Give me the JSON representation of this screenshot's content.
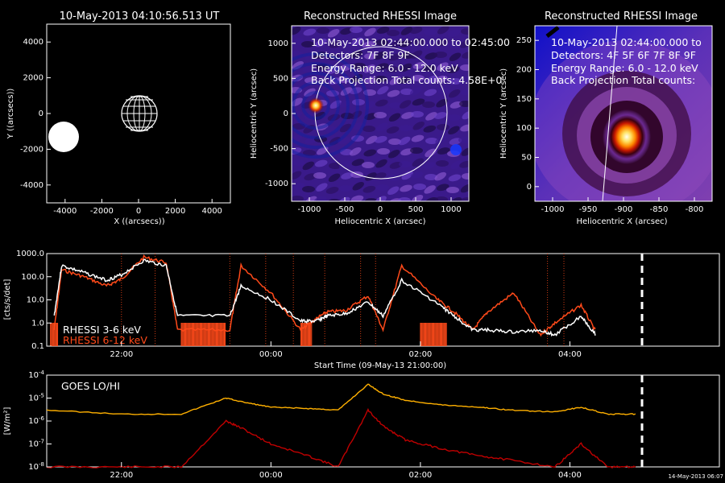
{
  "panel_sun": {
    "title": "10-May-2013 04:10:56.513 UT",
    "xlabel": "X ((arcsecs))",
    "ylabel": "Y ((arcsecs))",
    "xticks": [
      "-4000",
      "-2000",
      "0",
      "2000",
      "4000"
    ],
    "yticks": [
      "4000",
      "2000",
      "0",
      "-2000",
      "-4000"
    ]
  },
  "panel_img1": {
    "title": "Reconstructed RHESSI Image",
    "line1": "10-May-2013 02:44:00.000 to 02:45:00",
    "line2": "Detectors: 7F 8F 9F",
    "line3": "Energy Range: 6.0 - 12.0 keV",
    "line4": "Back Projection     Total counts: 4.58E+0",
    "xlabel": "Heliocentric X (arcsec)",
    "ylabel": "Heliocentric Y (arcsec)",
    "xticks": [
      "-1000",
      "-500",
      "0",
      "500",
      "1000"
    ],
    "yticks": [
      "1000",
      "500",
      "0",
      "-500",
      "-1000"
    ]
  },
  "panel_img2": {
    "title": "Reconstructed RHESSI Image",
    "line1": "10-May-2013 02:44:00.000 to",
    "line2": "Detectors: 4F 5F 6F 7F 8F 9F",
    "line3": "Energy Range: 6.0 - 12.0 keV",
    "line4": "Back Projection     Total counts:",
    "xlabel": "Heliocentric X (arcsec)",
    "ylabel": "Heliocentric Y (arcsec)",
    "xticks": [
      "-1000",
      "-950",
      "-900",
      "-850",
      "-800"
    ],
    "yticks": [
      "250",
      "200",
      "150",
      "100",
      "50",
      "0"
    ]
  },
  "panel_rhessi": {
    "ylabel": "[cts/s/det]",
    "yticks": [
      "1000.0",
      "100.0",
      "10.0",
      "1.0",
      "0.1"
    ],
    "xticks": [
      "22:00",
      "00:00",
      "02:00",
      "04:00"
    ],
    "xlabel": "Start Time (09-May-13 21:00:00)",
    "legend1": "RHESSI  3-6 keV",
    "legend2": "RHESSI  6-12 keV"
  },
  "panel_goes": {
    "label": "GOES LO/HI",
    "ylabel": "[W/m²]",
    "xticks": [
      "22:00",
      "00:00",
      "02:00",
      "04:00"
    ],
    "stamp": "14-May-2013 06:07"
  },
  "colors": {
    "rhessi_low": "#ffffff",
    "rhessi_high": "#ff4a1a",
    "goes_lo": "#ffb000",
    "goes_hi": "#c00000"
  },
  "chart_data": [
    {
      "type": "scatter",
      "title": "10-May-2013 04:10:56.513 UT",
      "xlabel": "X ((arcsecs))",
      "ylabel": "Y ((arcsecs))",
      "xlim": [
        -5000,
        5000
      ],
      "ylim": [
        -5000,
        5000
      ],
      "objects": [
        {
          "name": "solar disk (grid)",
          "x": 0,
          "y": 0,
          "r": 960
        },
        {
          "name": "filled disk",
          "x": -4500,
          "y": -1400,
          "r": 900
        }
      ]
    },
    {
      "type": "heatmap",
      "title": "Reconstructed RHESSI Image",
      "xlabel": "Heliocentric X (arcsec)",
      "ylabel": "Heliocentric Y (arcsec)",
      "xlim": [
        -1250,
        1250
      ],
      "ylim": [
        -1250,
        1250
      ],
      "source": {
        "x": -920,
        "y": 140
      }
    },
    {
      "type": "heatmap",
      "title": "Reconstructed RHESSI Image",
      "xlabel": "Heliocentric X (arcsec)",
      "ylabel": "Heliocentric Y (arcsec)",
      "xlim": [
        -1040,
        -795
      ],
      "ylim": [
        -5,
        255
      ],
      "source": {
        "x": -910,
        "y": 110
      }
    },
    {
      "type": "line",
      "ylabel": "[cts/s/det]",
      "xlabel": "Start Time (09-May-13 21:00:00)",
      "log_y": true,
      "ylim": [
        0.1,
        1000
      ],
      "x_hours": [
        21.1,
        21.2,
        21.5,
        21.8,
        22.0,
        22.3,
        22.6,
        22.75,
        23.45,
        23.6,
        24.0,
        24.4,
        24.6,
        24.75,
        25.0,
        25.3,
        25.5,
        25.75,
        26.2,
        26.45,
        26.7,
        26.9,
        27.25,
        27.6,
        27.8,
        28.15,
        28.35
      ],
      "series": [
        {
          "name": "RHESSI  3-6 keV",
          "values": [
            2,
            300,
            150,
            70,
            120,
            500,
            300,
            2,
            2,
            40,
            10,
            1.2,
            1.2,
            2,
            2.5,
            8,
            2,
            70,
            8,
            2,
            0.5,
            0.5,
            0.4,
            0.5,
            0.3,
            2,
            0.3
          ]
        },
        {
          "name": "RHESSI  6-12 keV",
          "values": [
            0.5,
            200,
            100,
            40,
            80,
            700,
            400,
            0.5,
            0.5,
            300,
            20,
            0.5,
            1.5,
            3,
            3.5,
            15,
            0.5,
            300,
            12,
            3,
            0.5,
            3,
            20,
            0.3,
            1,
            6,
            0.4
          ]
        }
      ]
    },
    {
      "type": "line",
      "ylabel": "[W/m²]",
      "log_y": true,
      "ylim": [
        1e-08,
        0.0001
      ],
      "x_hours": [
        21.0,
        22.0,
        22.8,
        23.4,
        23.6,
        24.0,
        24.5,
        24.9,
        25.3,
        25.5,
        25.8,
        26.3,
        26.8,
        27.2,
        27.8,
        28.15,
        28.5,
        28.9
      ],
      "series": [
        {
          "name": "GOES LO",
          "values": [
            3e-06,
            2e-06,
            2e-06,
            1e-05,
            7e-06,
            4e-06,
            3.5e-06,
            3e-06,
            4e-05,
            1.5e-05,
            8e-06,
            5e-06,
            4e-06,
            3e-06,
            2.5e-06,
            4e-06,
            2e-06,
            2e-06
          ]
        },
        {
          "name": "GOES HI",
          "values": [
            1e-08,
            1e-08,
            1e-08,
            1e-06,
            5e-07,
            1e-07,
            3e-08,
            1e-08,
            3e-06,
            6e-07,
            1.5e-07,
            6e-08,
            3e-08,
            2e-08,
            1e-08,
            1e-07,
            1e-08,
            1e-08
          ]
        }
      ]
    }
  ]
}
